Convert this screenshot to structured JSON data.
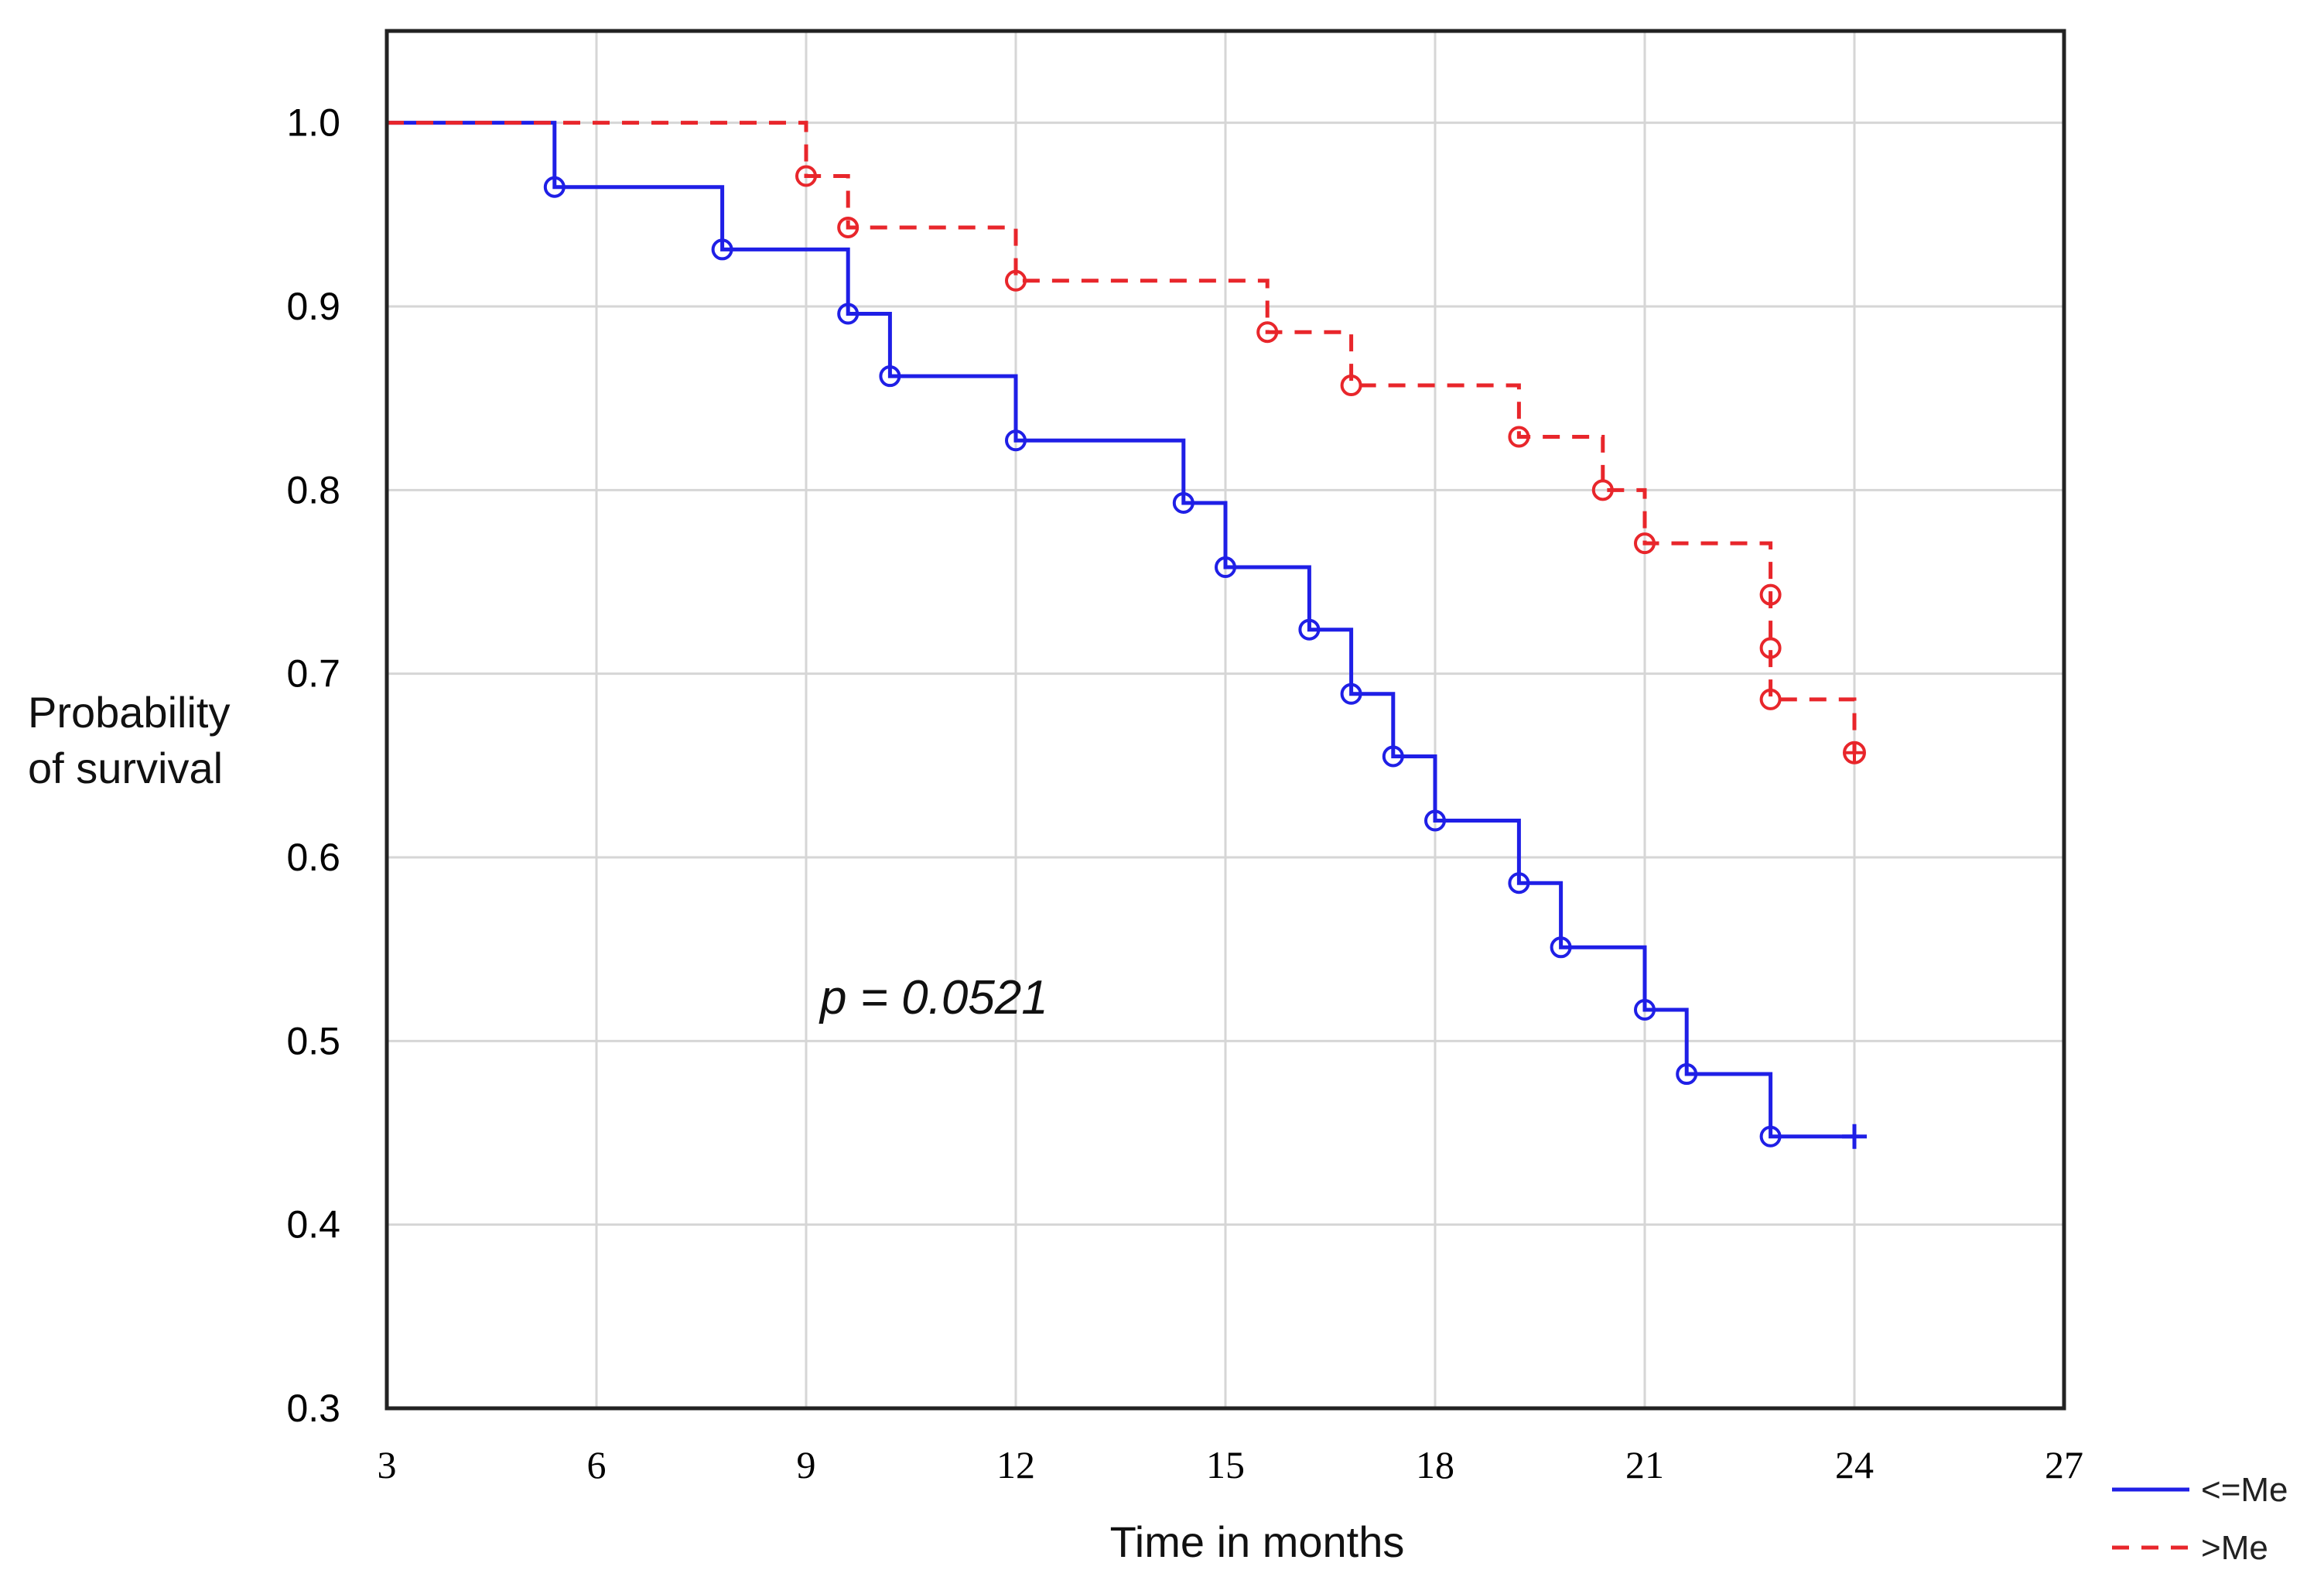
{
  "chart_data": {
    "type": "line",
    "subtype": "kaplan-meier-step",
    "title": "",
    "xlabel": "Time in months",
    "ylabel_lines": [
      "Probability",
      "of survival"
    ],
    "xlim": [
      3,
      27
    ],
    "ylim": [
      0.3,
      1.05
    ],
    "x_ticks": [
      3,
      6,
      9,
      12,
      15,
      18,
      21,
      24,
      27
    ],
    "x_tick_labels": [
      "3",
      "6",
      "9",
      "12",
      "15",
      "18",
      "21",
      "24",
      "27"
    ],
    "y_ticks": [
      0.3,
      0.4,
      0.5,
      0.6,
      0.7,
      0.8,
      0.9,
      1.0
    ],
    "y_tick_labels": [
      "0.3",
      "0.4",
      "0.5",
      "0.6",
      "0.7",
      "0.8",
      "0.9",
      "1.0"
    ],
    "grid": true,
    "annotation": "p = 0.0521",
    "legend_position": "bottom-right outside",
    "series": [
      {
        "name": "<=Me",
        "color": "#1f1fe6",
        "dash": "solid",
        "end_marker": "cross",
        "start": [
          3,
          1.0
        ],
        "steps": [
          [
            5.4,
            0.965
          ],
          [
            7.8,
            0.931
          ],
          [
            9.6,
            0.896
          ],
          [
            10.2,
            0.862
          ],
          [
            12.0,
            0.827
          ],
          [
            14.4,
            0.793
          ],
          [
            15.0,
            0.758
          ],
          [
            16.2,
            0.724
          ],
          [
            16.8,
            0.689
          ],
          [
            17.4,
            0.655
          ],
          [
            18.0,
            0.62
          ],
          [
            19.2,
            0.586
          ],
          [
            19.8,
            0.551
          ],
          [
            21.0,
            0.517
          ],
          [
            21.6,
            0.482
          ],
          [
            22.8,
            0.448
          ]
        ],
        "end_x": 24.0
      },
      {
        "name": ">Me",
        "color": "#e8262b",
        "dash": "dashed",
        "end_marker": "circle-cross",
        "start": [
          3,
          1.0
        ],
        "steps": [
          [
            9.0,
            0.971
          ],
          [
            9.6,
            0.943
          ],
          [
            12.0,
            0.914
          ],
          [
            15.6,
            0.886
          ],
          [
            16.8,
            0.857
          ],
          [
            19.2,
            0.829
          ],
          [
            20.4,
            0.8
          ],
          [
            21.0,
            0.771
          ],
          [
            22.8,
            0.743
          ],
          [
            22.8,
            0.714
          ],
          [
            22.8,
            0.686
          ],
          [
            24.0,
            0.657
          ]
        ],
        "end_x": 24.0
      }
    ]
  }
}
